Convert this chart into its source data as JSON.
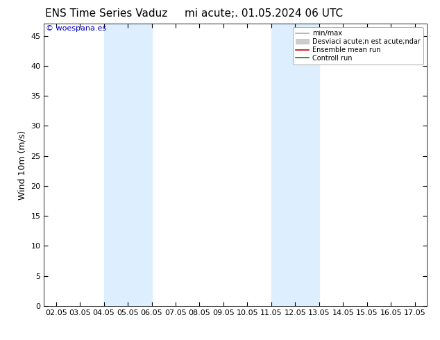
{
  "title_left": "ENS Time Series Vaduz",
  "title_right": "mi acute;. 01.05.2024 06 UTC",
  "ylabel": "Wind 10m (m/s)",
  "watermark": "© woespana.es",
  "watermark_color": "#0000cc",
  "xticklabels": [
    "02.05",
    "03.05",
    "04.05",
    "05.05",
    "06.05",
    "07.05",
    "08.05",
    "09.05",
    "10.05",
    "11.05",
    "12.05",
    "13.05",
    "14.05",
    "15.05",
    "16.05",
    "17.05"
  ],
  "yticks": [
    0,
    5,
    10,
    15,
    20,
    25,
    30,
    35,
    40,
    45
  ],
  "ylim": [
    0,
    47
  ],
  "xlim": [
    -0.5,
    15.5
  ],
  "shaded_bands": [
    {
      "xmin": 2,
      "xmax": 4,
      "color": "#ddeeff"
    },
    {
      "xmin": 9,
      "xmax": 11,
      "color": "#ddeeff"
    }
  ],
  "legend_items": [
    {
      "label": "min/max",
      "color": "#aaaaaa",
      "lw": 1.2,
      "style": "line"
    },
    {
      "label": "Desviaci acute;n est acute;ndar",
      "color": "#cccccc",
      "lw": 8,
      "style": "band"
    },
    {
      "label": "Ensemble mean run",
      "color": "#cc0000",
      "lw": 1.2,
      "style": "line"
    },
    {
      "label": "Controll run",
      "color": "#008800",
      "lw": 1.2,
      "style": "line"
    }
  ],
  "background_color": "#ffffff",
  "plot_bg_color": "#ffffff",
  "figsize": [
    6.34,
    4.9
  ],
  "dpi": 100
}
